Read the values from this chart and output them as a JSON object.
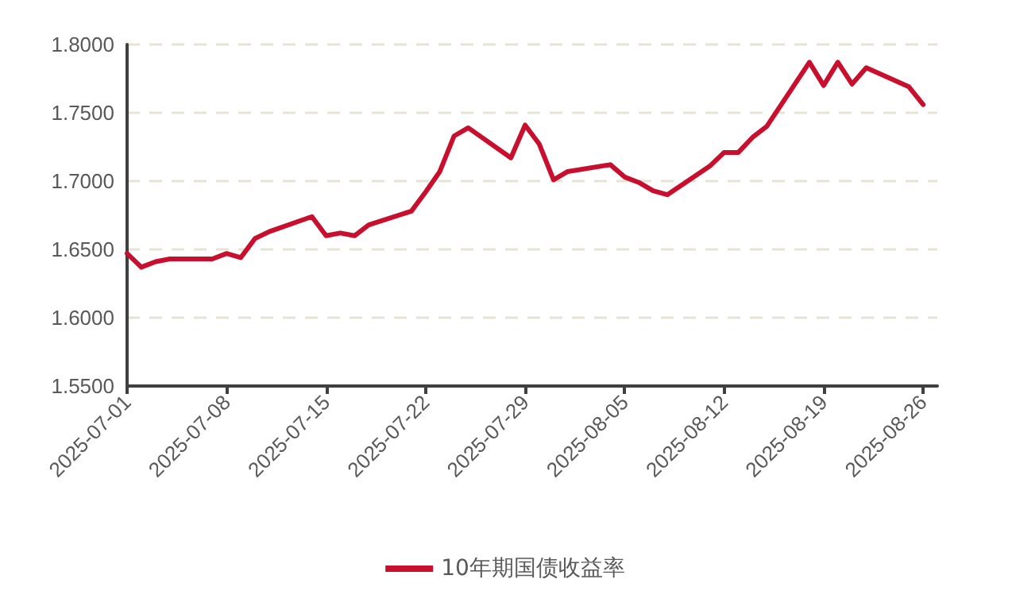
{
  "chart_data": {
    "type": "line",
    "x": [
      "2025-07-01",
      "2025-07-02",
      "2025-07-03",
      "2025-07-04",
      "2025-07-07",
      "2025-07-08",
      "2025-07-09",
      "2025-07-10",
      "2025-07-11",
      "2025-07-14",
      "2025-07-15",
      "2025-07-16",
      "2025-07-17",
      "2025-07-18",
      "2025-07-21",
      "2025-07-22",
      "2025-07-23",
      "2025-07-24",
      "2025-07-25",
      "2025-07-28",
      "2025-07-29",
      "2025-07-30",
      "2025-07-31",
      "2025-08-01",
      "2025-08-04",
      "2025-08-05",
      "2025-08-06",
      "2025-08-07",
      "2025-08-08",
      "2025-08-11",
      "2025-08-12",
      "2025-08-13",
      "2025-08-14",
      "2025-08-15",
      "2025-08-18",
      "2025-08-19",
      "2025-08-20",
      "2025-08-21",
      "2025-08-22",
      "2025-08-25",
      "2025-08-26"
    ],
    "series": [
      {
        "name": "10年期国债收益率",
        "color": "#c8102e",
        "values": [
          1.647,
          1.637,
          1.641,
          1.643,
          1.643,
          1.647,
          1.644,
          1.658,
          1.663,
          1.674,
          1.66,
          1.662,
          1.66,
          1.668,
          1.678,
          1.692,
          1.707,
          1.733,
          1.739,
          1.717,
          1.741,
          1.727,
          1.701,
          1.707,
          1.712,
          1.703,
          1.699,
          1.693,
          1.69,
          1.711,
          1.721,
          1.721,
          1.732,
          1.74,
          1.787,
          1.77,
          1.787,
          1.771,
          1.783,
          1.769,
          1.756
        ]
      }
    ],
    "xlim": [
      "2025-07-01",
      "2025-08-27"
    ],
    "xticks": [
      "2025-07-01",
      "2025-07-08",
      "2025-07-15",
      "2025-07-22",
      "2025-07-29",
      "2025-08-05",
      "2025-08-12",
      "2025-08-19",
      "2025-08-26"
    ],
    "ylim": [
      1.55,
      1.8
    ],
    "yticks": [
      {
        "value": 1.55,
        "label": "1.5500"
      },
      {
        "value": 1.6,
        "label": "1.6000"
      },
      {
        "value": 1.65,
        "label": "1.6500"
      },
      {
        "value": 1.7,
        "label": "1.7000"
      },
      {
        "value": 1.75,
        "label": "1.7500"
      },
      {
        "value": 1.8,
        "label": "1.8000"
      }
    ],
    "grid": "y",
    "legend": "bottom",
    "marker": "none",
    "line_style": "solid"
  }
}
